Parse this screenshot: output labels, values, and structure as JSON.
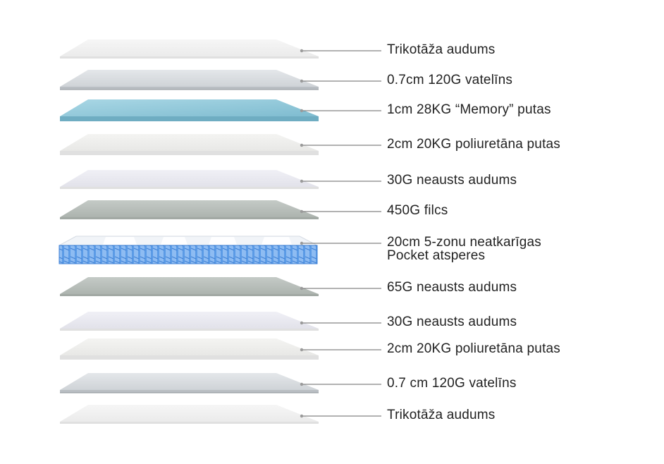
{
  "diagram": {
    "layers": [
      {
        "id": "trikotaza-top",
        "label": "Trikotāža audums",
        "style": "knit"
      },
      {
        "id": "vatelins-top",
        "label": "0.7cm 120G vatelīns",
        "style": "wadding"
      },
      {
        "id": "memory-foam",
        "label": "1cm 28KG “Memory” putas",
        "style": "memory"
      },
      {
        "id": "foam-top",
        "label": "2cm 20KG poliuretāna putas",
        "style": "foam"
      },
      {
        "id": "nonwoven-30-top",
        "label": "30G neausts audums",
        "style": "nonwoven"
      },
      {
        "id": "felt-450",
        "label": "450G filcs",
        "style": "felt"
      },
      {
        "id": "pocket-springs",
        "label": "20cm 5-zonu neatkarīgas",
        "label_line2": "Pocket atsperes",
        "style": "springs"
      },
      {
        "id": "nonwoven-65",
        "label": "65G neausts audums",
        "style": "felt"
      },
      {
        "id": "nonwoven-30-bottom",
        "label": "30G neausts audums",
        "style": "nonwoven"
      },
      {
        "id": "foam-bottom",
        "label": "2cm 20KG poliuretāna putas",
        "style": "foam"
      },
      {
        "id": "vatelins-bottom",
        "label": "0.7 cm 120G vatelīns",
        "style": "wadding"
      },
      {
        "id": "trikotaza-bottom",
        "label": "Trikotāža audums",
        "style": "knit"
      }
    ],
    "colors": {
      "leader_line": "#666666",
      "dot": "#9a9a9a",
      "memory_blue": "#8cc6d8",
      "spring_blue": "#4a90e2",
      "felt_gray": "#b5bcb7"
    }
  }
}
